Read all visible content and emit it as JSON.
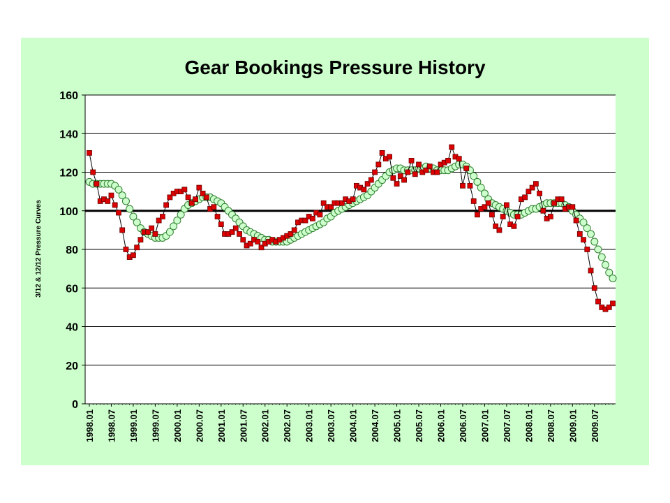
{
  "chart_data": {
    "type": "line",
    "title": "Gear Bookings Pressure History",
    "ylabel": "3/12 & 12/12 Pressure Curves",
    "xlabel": "",
    "ylim": [
      0,
      160
    ],
    "yticks": [
      0,
      20,
      40,
      60,
      80,
      100,
      120,
      140,
      160
    ],
    "xtick_labels": [
      "1998.01",
      "1998.07",
      "1999.01",
      "1999.07",
      "2000.01",
      "2000.07",
      "2001.01",
      "2001.07",
      "2002.01",
      "2002.07",
      "2003.01",
      "2003.07",
      "2004.01",
      "2004.07",
      "2005.01",
      "2005.07",
      "2006.01",
      "2006.07",
      "2007.01",
      "2007.07",
      "2008.01",
      "2008.07",
      "2009.01",
      "2009.07"
    ],
    "x_start": "1998.01",
    "x_end": "2009.07",
    "grid": true,
    "legend": "none",
    "reference_line": {
      "y": 100,
      "color": "#000000"
    },
    "colors": {
      "background": "#ccffcc",
      "plot_area": "#ffffff",
      "three_month": "#dd0000",
      "twelve_month": "#ccffcc"
    },
    "series": [
      {
        "marker": "square",
        "color": "#dd0000",
        "values": [
          130,
          120,
          114,
          105,
          106,
          105,
          108,
          103,
          99,
          90,
          80,
          76,
          77,
          81,
          85,
          89,
          89,
          91,
          88,
          95,
          97,
          103,
          107,
          109,
          110,
          110,
          111,
          107,
          104,
          106,
          112,
          109,
          107,
          101,
          102,
          97,
          93,
          88,
          88,
          89,
          91,
          88,
          85,
          82,
          83,
          85,
          84,
          81,
          83,
          84,
          85,
          84,
          85,
          86,
          87,
          88,
          90,
          94,
          95,
          95,
          97,
          96,
          99,
          98,
          104,
          102,
          102,
          104,
          104,
          104,
          106,
          105,
          106,
          113,
          112,
          111,
          114,
          116,
          120,
          124,
          130,
          127,
          128,
          117,
          114,
          118,
          116,
          120,
          126,
          119,
          124,
          120,
          121,
          123,
          120,
          120,
          124,
          125,
          126,
          133,
          128,
          127,
          113,
          122,
          113,
          105,
          98,
          101,
          102,
          104,
          98,
          92,
          90,
          97,
          103,
          93,
          92,
          97,
          106,
          107,
          110,
          112,
          114,
          109,
          100,
          96,
          97,
          104,
          106,
          106,
          101,
          102,
          102,
          95,
          88,
          85,
          80,
          69,
          60,
          53,
          50,
          49,
          50,
          52
        ]
      },
      {
        "marker": "circle",
        "color": "#ccffcc",
        "values": [
          115,
          114,
          114,
          114,
          114,
          114,
          114,
          113,
          111,
          108,
          105,
          101,
          97,
          94,
          91,
          89,
          88,
          87,
          86,
          86,
          86,
          87,
          89,
          92,
          95,
          98,
          101,
          103,
          104,
          105,
          106,
          107,
          107,
          107,
          106,
          105,
          104,
          102,
          100,
          98,
          96,
          94,
          92,
          90,
          89,
          88,
          87,
          86,
          85,
          85,
          84,
          84,
          84,
          84,
          84,
          85,
          86,
          87,
          88,
          89,
          90,
          91,
          92,
          93,
          94,
          96,
          97,
          99,
          100,
          101,
          102,
          103,
          104,
          105,
          106,
          107,
          108,
          110,
          112,
          114,
          116,
          118,
          120,
          121,
          122,
          122,
          121,
          121,
          121,
          121,
          122,
          122,
          123,
          122,
          122,
          121,
          121,
          121,
          121,
          122,
          123,
          124,
          124,
          123,
          121,
          118,
          115,
          112,
          109,
          106,
          104,
          103,
          102,
          101,
          100,
          99,
          98,
          98,
          98,
          99,
          100,
          101,
          101,
          102,
          103,
          104,
          104,
          104,
          104,
          104,
          103,
          102,
          100,
          98,
          96,
          94,
          91,
          88,
          84,
          80,
          76,
          72,
          68,
          65
        ]
      }
    ]
  }
}
